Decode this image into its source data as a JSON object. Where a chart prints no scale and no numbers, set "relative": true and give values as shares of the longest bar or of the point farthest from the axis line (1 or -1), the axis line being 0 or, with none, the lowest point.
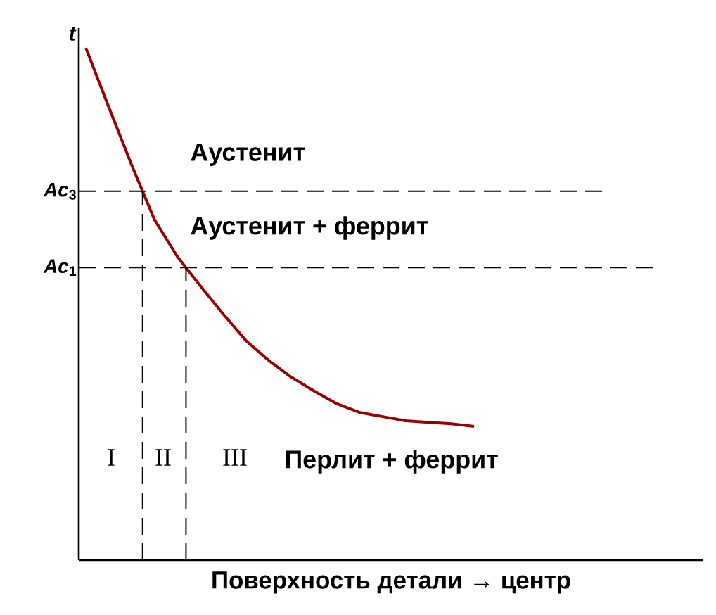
{
  "chart_data": {
    "type": "line",
    "xlabel": "Поверхность детали → центр",
    "ylabel": "t",
    "categories": [
      null,
      null,
      null,
      null,
      null,
      null,
      null,
      null,
      null,
      null,
      null,
      null,
      null,
      null,
      null,
      null,
      null,
      null
    ],
    "relative": true,
    "series": [
      {
        "color": "#990000",
        "values": [
          1.0,
          0.885,
          0.772,
          0.665,
          0.593,
          0.536,
          0.481,
          0.429,
          0.39,
          0.357,
          0.33,
          0.305,
          0.288,
          0.28,
          0.272,
          0.269,
          0.266,
          0.261
        ]
      }
    ],
    "ref_lines": [
      {
        "axis": "y",
        "value": 0.72,
        "label": "*Ac*$_{3}$",
        "line_style": "dashed",
        "color": "#000000"
      },
      {
        "axis": "y",
        "value": 0.571,
        "label": "*Ac*$_{1}$",
        "line_style": "dashed",
        "color": "#000000"
      }
    ],
    "annotations": [
      "Аустенит",
      "Аустенит + феррит",
      "Перлит + феррит",
      "I",
      "II",
      "III"
    ],
    "marker": "none",
    "line_style": "solid"
  }
}
